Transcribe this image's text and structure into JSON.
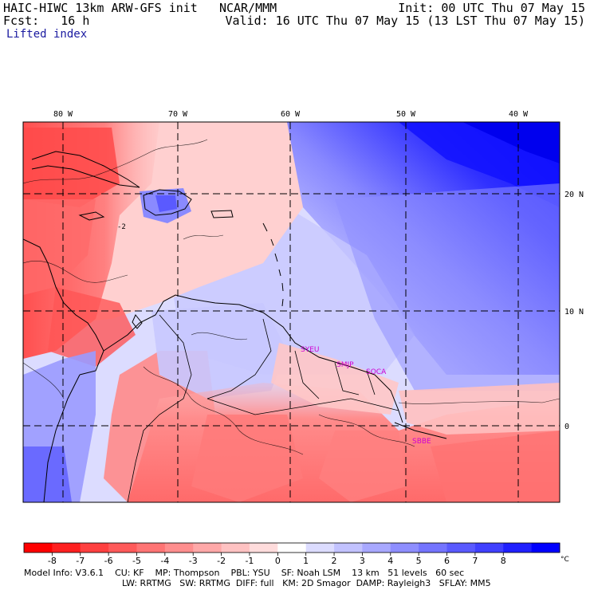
{
  "header": {
    "model_title": "HAIC-HIWC 13km ARW-GFS init",
    "org": "NCAR/MMM",
    "init": "Init: 00 UTC Thu 07 May 15",
    "fcst": "Fcst:   16 h",
    "valid": "Valid: 16 UTC Thu 07 May 15 (13 LST Thu 07 May 15)",
    "field": "Lifted index"
  },
  "map": {
    "lon_labels": [
      "80 W",
      "70 W",
      "60 W",
      "50 W",
      "40 W"
    ],
    "lat_labels": [
      "20 N",
      "10 N",
      "0"
    ],
    "stations": [
      "SYEU",
      "SMJP",
      "SOCA",
      "SBBE"
    ],
    "contour_label": "-2"
  },
  "colorbar": {
    "ticks": [
      "-8",
      "-7",
      "-6",
      "-5",
      "-4",
      "-3",
      "-2",
      "-1",
      "0",
      "1",
      "2",
      "3",
      "4",
      "5",
      "6",
      "7",
      "8"
    ],
    "unit": "°C",
    "colors": [
      "#ff0000",
      "#ff2020",
      "#ff4040",
      "#ff5a5a",
      "#ff7474",
      "#ff8e8e",
      "#ffa8a8",
      "#ffc2c2",
      "#ffdcdc",
      "#ffffff",
      "#dcdcff",
      "#c2c2ff",
      "#a8a8ff",
      "#8e8eff",
      "#7474ff",
      "#5a5aff",
      "#4040ff",
      "#2020ff",
      "#0000ff"
    ]
  },
  "footer": {
    "line1": [
      "Model Info: V3.6.1",
      "CU: KF",
      "MP: Thompson",
      "PBL: YSU",
      "SF: Noah LSM",
      "13 km",
      "51 levels",
      "60 sec"
    ],
    "line2": [
      "LW: RRTMG",
      "SW: RRTMG",
      "DIFF: full",
      "KM: 2D Smagor",
      "DAMP: Rayleigh3",
      "SFLAY: MM5"
    ]
  }
}
